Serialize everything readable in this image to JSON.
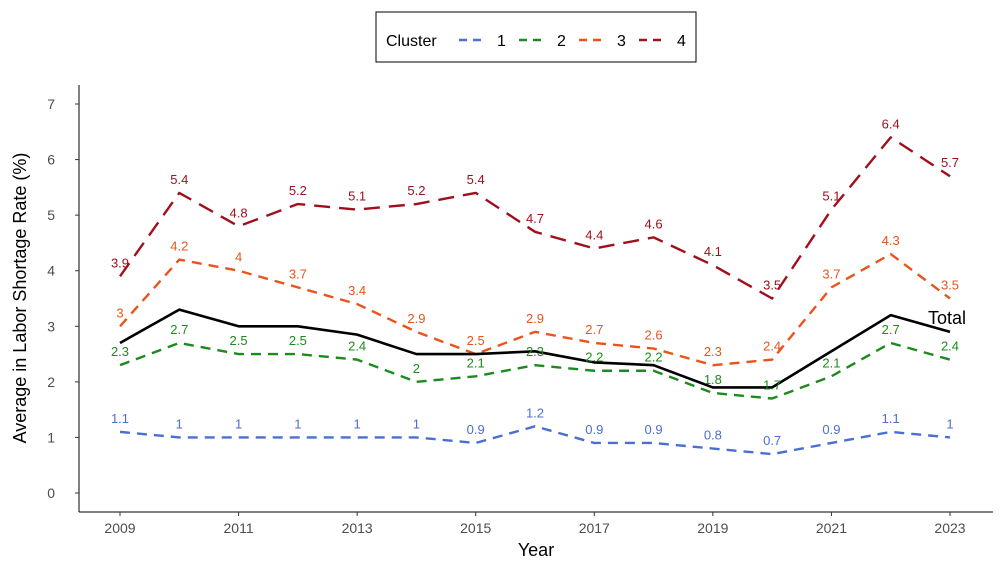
{
  "chart_data": {
    "type": "line",
    "xlabel": "Year",
    "ylabel": "Average in Labor Shortage Rate (%)",
    "x": [
      2009,
      2010,
      2011,
      2012,
      2013,
      2014,
      2015,
      2016,
      2017,
      2018,
      2019,
      2020,
      2021,
      2022,
      2023
    ],
    "x_ticks": [
      "2009",
      "2011",
      "2013",
      "2015",
      "2017",
      "2019",
      "2021",
      "2023"
    ],
    "y_ticks": [
      "0",
      "1",
      "2",
      "3",
      "4",
      "5",
      "6",
      "7"
    ],
    "xlim": [
      2009,
      2023
    ],
    "ylim": [
      0,
      7
    ],
    "grid": false,
    "legend": {
      "title": "Cluster",
      "placement": "top-center",
      "items": [
        "1",
        "2",
        "3",
        "4"
      ]
    },
    "series": [
      {
        "name": "1",
        "color": "#4a6fd0",
        "dash": "dashed",
        "values": [
          1.1,
          1.0,
          1.0,
          1.0,
          1.0,
          1.0,
          0.9,
          1.2,
          0.9,
          0.9,
          0.8,
          0.7,
          0.9,
          1.1,
          1.0
        ],
        "labels": [
          "1.1",
          "1",
          "1",
          "1",
          "1",
          "1",
          "0.9",
          "1.2",
          "0.9",
          "0.9",
          "0.8",
          "0.7",
          "0.9",
          "1.1",
          "1"
        ]
      },
      {
        "name": "2",
        "color": "#1d8a1d",
        "dash": "dashed",
        "values": [
          2.3,
          2.7,
          2.5,
          2.5,
          2.4,
          2.0,
          2.1,
          2.3,
          2.2,
          2.2,
          1.8,
          1.7,
          2.1,
          2.7,
          2.4
        ],
        "labels": [
          "2.3",
          "2.7",
          "2.5",
          "2.5",
          "2.4",
          "2",
          "2.1",
          "2.3",
          "2.2",
          "2.2",
          "1.8",
          "1.7",
          "2.1",
          "2.7",
          "2.4"
        ]
      },
      {
        "name": "3",
        "color": "#e8541c",
        "dash": "dashed",
        "values": [
          3.0,
          4.2,
          4.0,
          3.7,
          3.4,
          2.9,
          2.5,
          2.9,
          2.7,
          2.6,
          2.3,
          2.4,
          3.7,
          4.3,
          3.5
        ],
        "labels": [
          "3",
          "4.2",
          "4",
          "3.7",
          "3.4",
          "2.9",
          "2.5",
          "2.9",
          "2.7",
          "2.6",
          "2.3",
          "2.4",
          "3.7",
          "4.3",
          "3.5"
        ]
      },
      {
        "name": "4",
        "color": "#a0101c",
        "dash": "longdash",
        "values": [
          3.9,
          5.4,
          4.8,
          5.2,
          5.1,
          5.2,
          5.4,
          4.7,
          4.4,
          4.6,
          4.1,
          3.5,
          5.1,
          6.4,
          5.7
        ],
        "labels": [
          "3.9",
          "5.4",
          "4.8",
          "5.2",
          "5.1",
          "5.2",
          "5.4",
          "4.7",
          "4.4",
          "4.6",
          "4.1",
          "3.5",
          "5.1",
          "6.4",
          "5.7"
        ]
      },
      {
        "name": "Total",
        "color": "#000000",
        "dash": "solid",
        "values": [
          2.7,
          3.3,
          3.0,
          3.0,
          2.85,
          2.5,
          2.5,
          2.55,
          2.35,
          2.3,
          1.9,
          1.9,
          2.55,
          3.2,
          2.9
        ],
        "labels": []
      }
    ]
  }
}
